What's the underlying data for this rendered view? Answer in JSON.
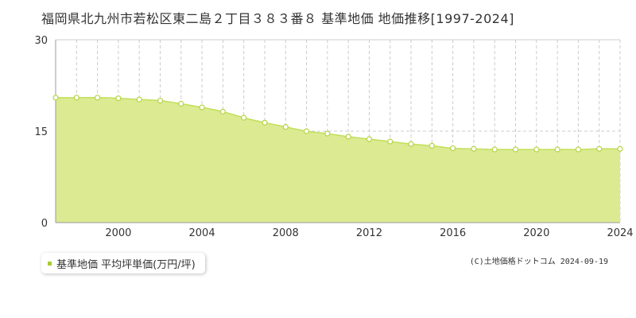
{
  "title": "福岡県北九州市若松区東二島２丁目３８３番８ 基準地価 地価推移[1997-2024]",
  "legend": {
    "label": "基準地価 平均坪単価(万円/坪)"
  },
  "credit": "(C)土地価格ドットコム 2024-09-19",
  "colors": {
    "area_fill": "#dcea92",
    "line": "#c2df5a",
    "marker_fill": "#ffffff",
    "marker_stroke": "#b5d445",
    "legend_marker": "#a8cc2e",
    "grid": "#cccccc",
    "axis": "#999999"
  },
  "chart_data": {
    "type": "area",
    "x": [
      1997,
      1998,
      1999,
      2000,
      2001,
      2002,
      2003,
      2004,
      2005,
      2006,
      2007,
      2008,
      2009,
      2010,
      2011,
      2012,
      2013,
      2014,
      2015,
      2016,
      2017,
      2018,
      2019,
      2020,
      2021,
      2022,
      2023,
      2024
    ],
    "series": [
      {
        "name": "基準地価 平均坪単価(万円/坪)",
        "values": [
          20.5,
          20.5,
          20.5,
          20.4,
          20.2,
          20.0,
          19.5,
          18.9,
          18.2,
          17.2,
          16.4,
          15.7,
          15.0,
          14.6,
          14.1,
          13.7,
          13.3,
          12.9,
          12.6,
          12.2,
          12.1,
          12.0,
          12.0,
          12.0,
          12.0,
          12.0,
          12.1,
          12.1
        ]
      }
    ],
    "xlim": [
      1997,
      2024
    ],
    "ylim": [
      0,
      30
    ],
    "yticks": [
      "0",
      "15",
      "30"
    ],
    "xticks": [
      "2000",
      "2004",
      "2008",
      "2012",
      "2016",
      "2020",
      "2024"
    ],
    "grid": true
  }
}
